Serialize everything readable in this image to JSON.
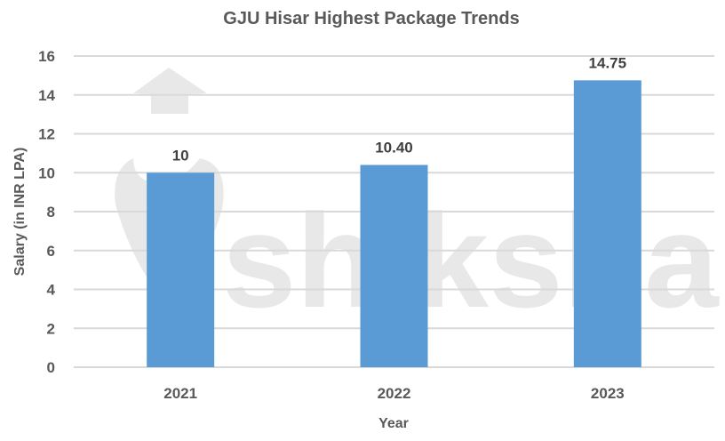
{
  "chart_data": {
    "type": "bar",
    "title": "GJU Hisar Highest Package Trends",
    "xlabel": "Year",
    "ylabel": "Salary (in INR LPA)",
    "categories": [
      "2021",
      "2022",
      "2023"
    ],
    "values": [
      10,
      10.4,
      14.75
    ],
    "data_labels": [
      "10",
      "10.40",
      "14.75"
    ],
    "ylim": [
      0,
      16
    ],
    "yticks": [
      0,
      2,
      4,
      6,
      8,
      10,
      12,
      14,
      16
    ],
    "grid": true,
    "legend": "none",
    "bar_color": "#5b9bd5"
  },
  "watermark": {
    "text": "shiksha"
  },
  "colors": {
    "bar": "#5b9bd5",
    "grid": "#d9d9d9",
    "text": "#595959",
    "data_label": "#404040"
  }
}
